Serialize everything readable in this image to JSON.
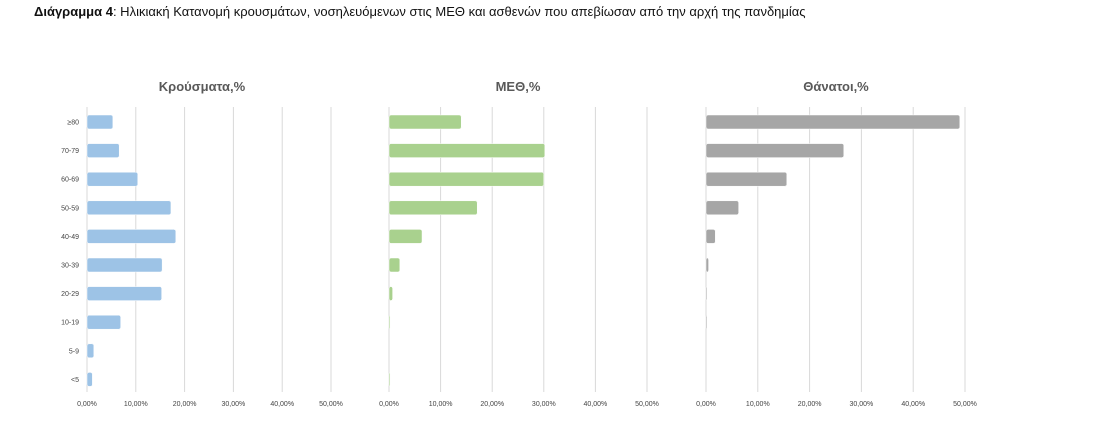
{
  "caption": {
    "label": "Διάγραμμα 4",
    "text": ": Ηλικιακή Κατανομή κρουσμάτων, νοσηλευόμενων στις ΜΕΘ και ασθενών που απεβίωσαν από την αρχή της πανδημίας"
  },
  "chart_data": [
    {
      "type": "bar",
      "orientation": "horizontal",
      "title": "Κρούσματα,%",
      "categories": [
        "≥80",
        "70-79",
        "60-69",
        "50-59",
        "40-49",
        "30-39",
        "20-29",
        "10-19",
        "5-9",
        "<5"
      ],
      "values": [
        5.3,
        6.6,
        10.4,
        17.2,
        18.2,
        15.4,
        15.3,
        6.9,
        1.4,
        1.1
      ],
      "xlim": [
        0,
        50
      ],
      "xticks": [
        "0,00%",
        "10,00%",
        "20,00%",
        "30,00%",
        "40,00%",
        "50,00%"
      ],
      "color": "#9dc3e6",
      "grid": true
    },
    {
      "type": "bar",
      "orientation": "horizontal",
      "title": "ΜΕΘ,%",
      "categories": [
        "≥80",
        "70-79",
        "60-69",
        "50-59",
        "40-49",
        "30-39",
        "20-29",
        "10-19",
        "5-9",
        "<5"
      ],
      "values": [
        14.0,
        30.2,
        30.0,
        17.1,
        6.4,
        2.1,
        0.7,
        0.2,
        0.0,
        0.2
      ],
      "xlim": [
        0,
        50
      ],
      "xticks": [
        "0,00%",
        "10,00%",
        "20,00%",
        "30,00%",
        "40,00%",
        "50,00%"
      ],
      "color": "#a9d18e",
      "grid": true
    },
    {
      "type": "bar",
      "orientation": "horizontal",
      "title": "Θάνατοι,%",
      "categories": [
        "≥80",
        "70-79",
        "60-69",
        "50-59",
        "40-49",
        "30-39",
        "20-29",
        "10-19",
        "5-9",
        "<5"
      ],
      "values": [
        49.0,
        26.6,
        15.6,
        6.3,
        1.8,
        0.5,
        0.1,
        0.05,
        0.0,
        0.0
      ],
      "xlim": [
        0,
        50
      ],
      "xticks": [
        "0,00%",
        "10,00%",
        "20,00%",
        "30,00%",
        "40,00%",
        "50,00%"
      ],
      "color": "#a6a6a6",
      "grid": true
    }
  ]
}
